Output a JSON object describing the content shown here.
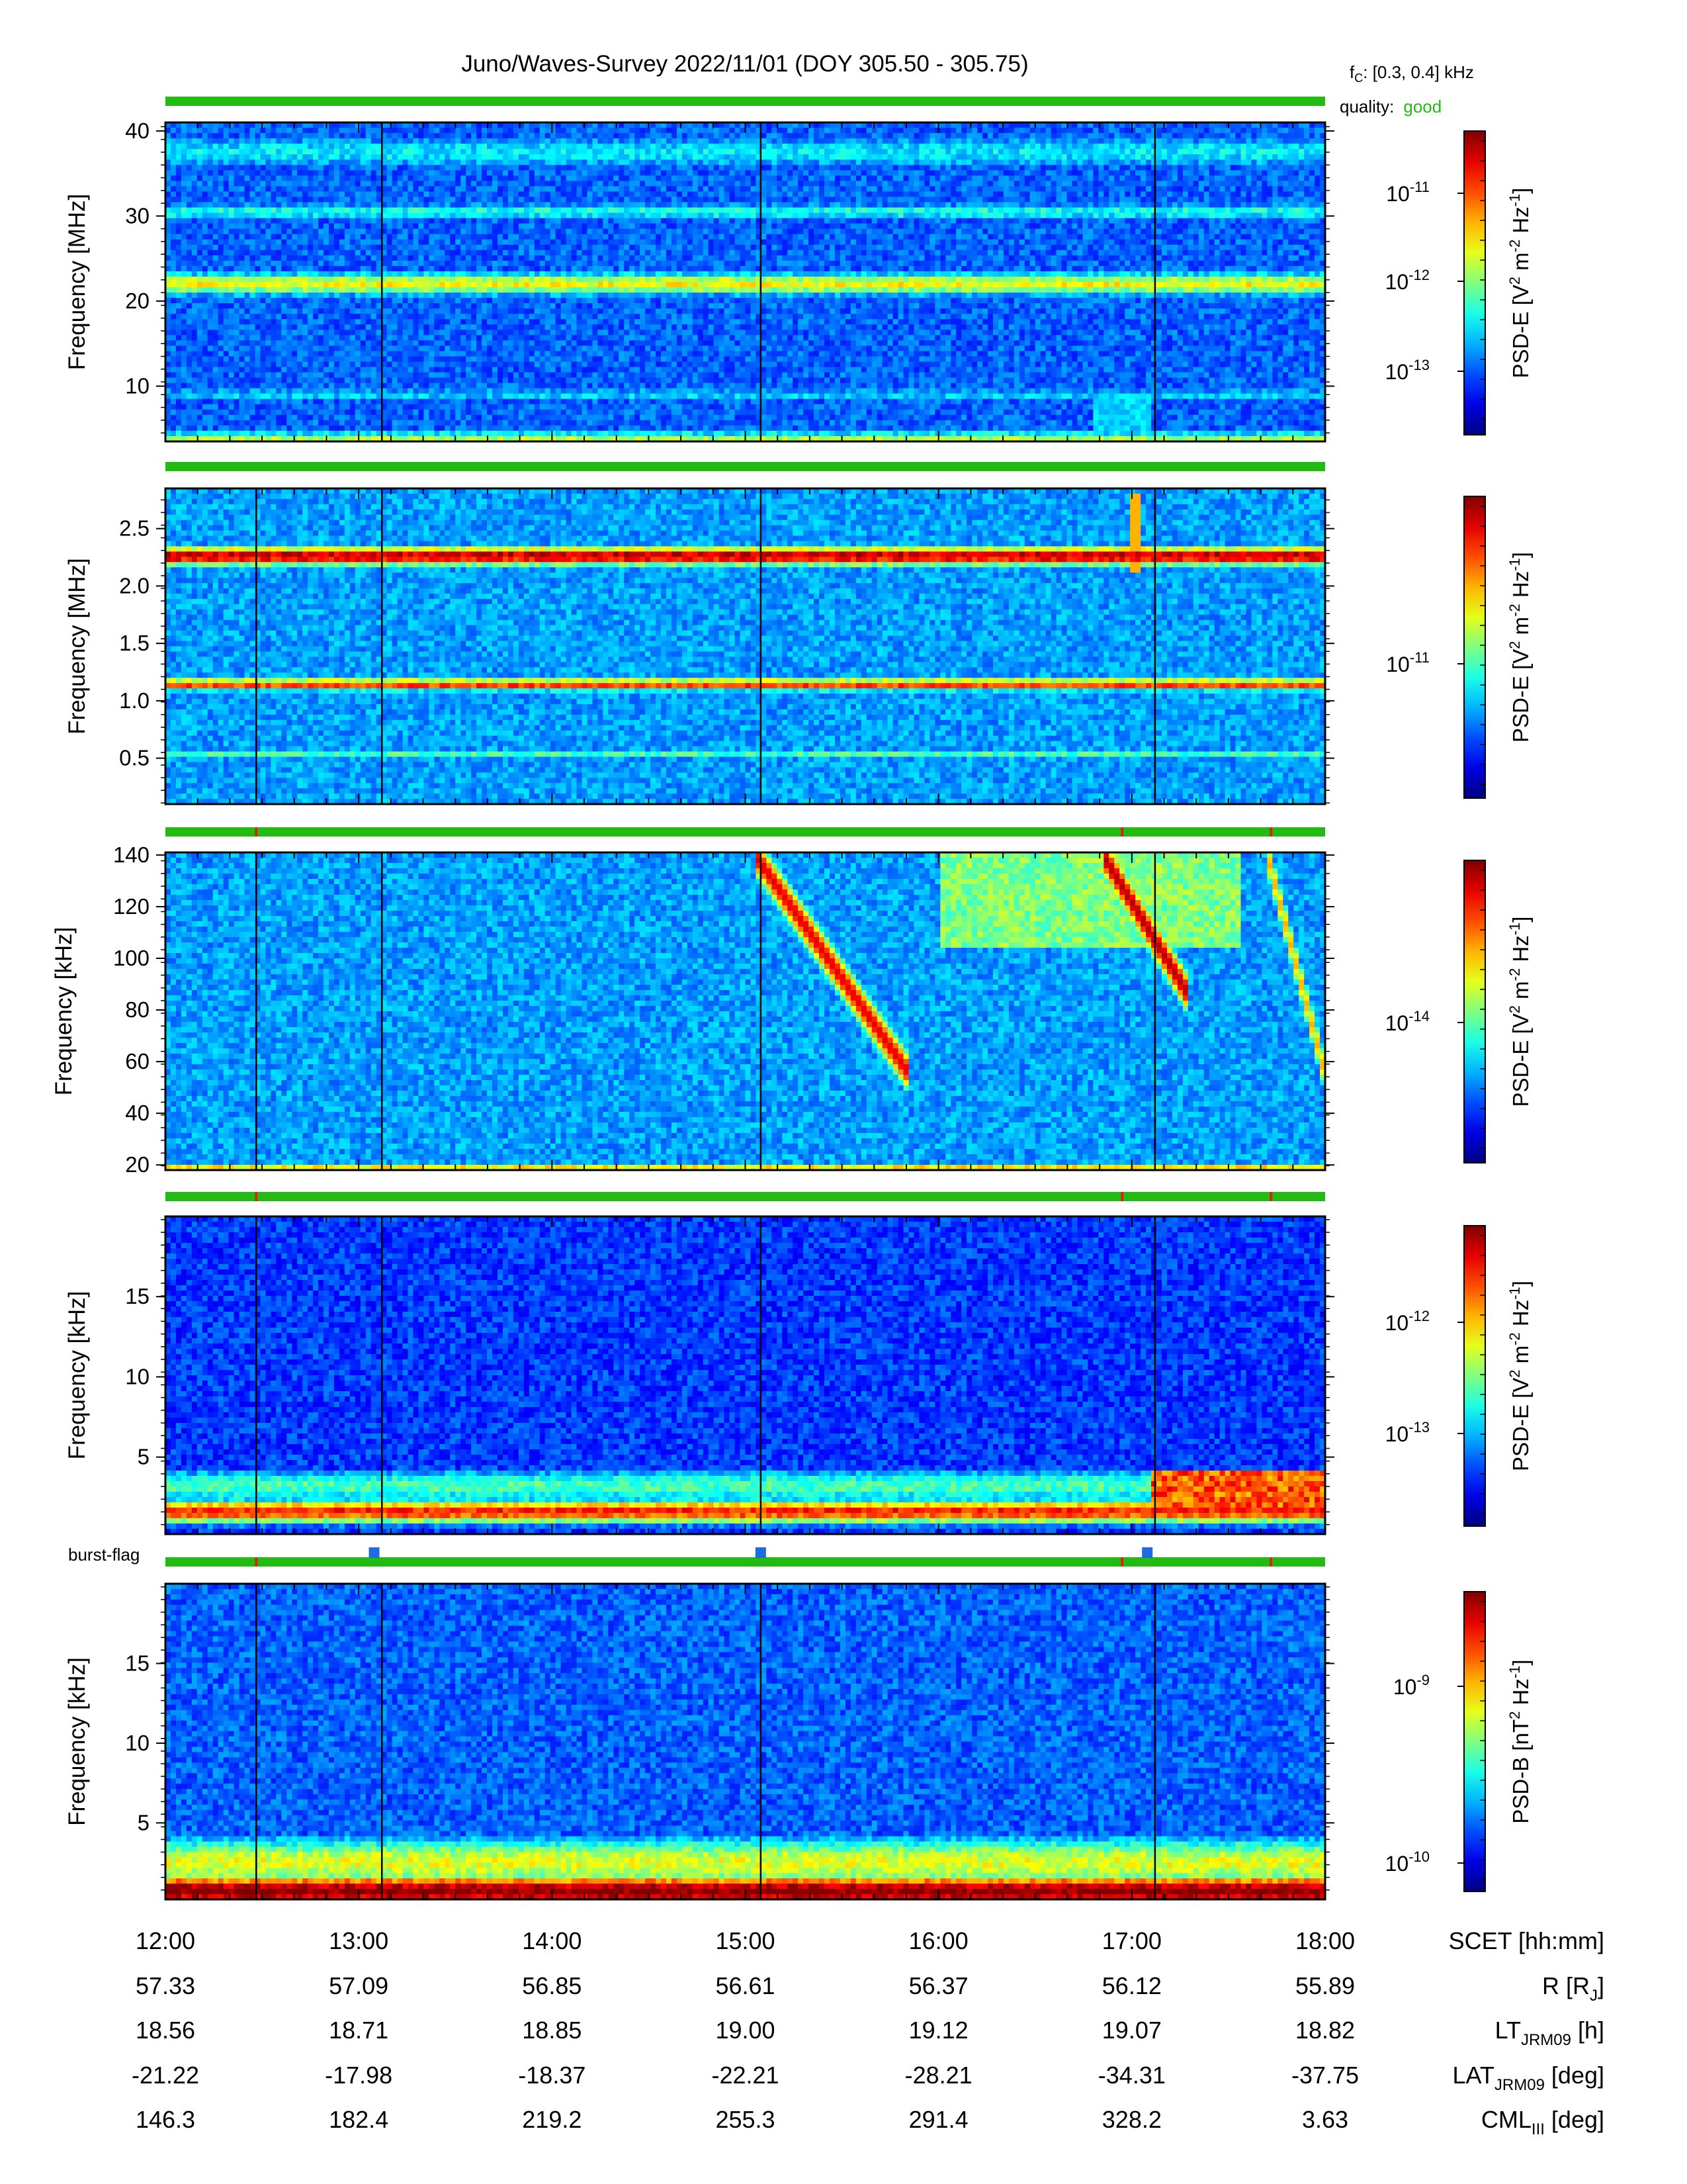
{
  "title": "Juno/Waves-Survey  2022/11/01 (DOY 305.50 - 305.75)",
  "header_info": {
    "fc_label": "f",
    "fc_sub": "C",
    "fc_value": ": [0.3, 0.4] kHz",
    "quality_label": "quality:",
    "quality_value": "good",
    "quality_color": "#22bb11"
  },
  "burst_flag_label": "burst-flag",
  "burst_flag_color": "#1f6be0",
  "burst_flag_times_hours": [
    13.08,
    15.08,
    17.08
  ],
  "colormap": "jet",
  "marker_lines_hours": [
    12.47,
    13.12,
    15.08,
    17.12
  ],
  "chart_data": [
    {
      "type": "heatmap",
      "panel": 1,
      "ylabel": "Frequency [MHz]",
      "yticks": [
        "10",
        "20",
        "30",
        "40"
      ],
      "ylim": [
        3.5,
        41
      ],
      "xlim_hours": [
        12,
        18
      ],
      "quality_bar_color": "#22bb11",
      "quality_flag_ticks_hours": [],
      "colorbar": {
        "label_main": "PSD-E [V",
        "label_unit": "V2 m-2 Hz-1",
        "ticks": [
          "10-11",
          "10-12",
          "10-13"
        ]
      },
      "bands": [
        {
          "center": 22.0,
          "width": 1.5,
          "intensity": 0.62
        },
        {
          "center": 30.5,
          "width": 1.2,
          "intensity": 0.4
        },
        {
          "center": 37.5,
          "width": 2.5,
          "intensity": 0.36
        },
        {
          "center": 9.0,
          "width": 0.9,
          "intensity": 0.34
        },
        {
          "center": 4.0,
          "width": 0.6,
          "intensity": 0.6
        }
      ],
      "background_intensity": 0.22,
      "features": [
        {
          "type": "blob",
          "t0": 16.8,
          "t1": 17.1,
          "f0": 4.5,
          "f1": 9,
          "intensity": 0.38
        }
      ]
    },
    {
      "type": "heatmap",
      "panel": 2,
      "ylabel": "Frequency [MHz]",
      "yticks": [
        "0.5",
        "1.0",
        "1.5",
        "2.0",
        "2.5"
      ],
      "ylim": [
        0.1,
        2.85
      ],
      "xlim_hours": [
        12,
        18
      ],
      "quality_bar_color": "#22bb11",
      "quality_flag_ticks_hours": [],
      "colorbar": {
        "label_main": "PSD-E [V",
        "label_unit": "V2 m-2 Hz-1",
        "ticks": [
          "10-11"
        ]
      },
      "bands": [
        {
          "center": 2.26,
          "width": 0.09,
          "intensity": 0.95
        },
        {
          "center": 1.14,
          "width": 0.06,
          "intensity": 0.82
        },
        {
          "center": 0.53,
          "width": 0.03,
          "intensity": 0.45
        }
      ],
      "background_intensity": 0.28,
      "features": [
        {
          "type": "line",
          "t0": 17.0,
          "t1": 17.02,
          "f0": 2.1,
          "f1": 2.8,
          "intensity": 0.7
        }
      ]
    },
    {
      "type": "heatmap",
      "panel": 3,
      "ylabel": "Frequency [kHz]",
      "yticks": [
        "20",
        "40",
        "60",
        "80",
        "100",
        "120",
        "140"
      ],
      "ylim": [
        18,
        141
      ],
      "xlim_hours": [
        12,
        18
      ],
      "quality_bar_color": "#22bb11",
      "quality_flag_ticks_hours": [
        12.47,
        16.95,
        17.72
      ],
      "colorbar": {
        "label_main": "PSD-E [V",
        "label_unit": "V2 m-2 Hz-1",
        "ticks": [
          "10-14"
        ]
      },
      "bands": [
        {
          "center": 19.5,
          "width": 1.5,
          "intensity": 0.7
        }
      ],
      "background_intensity": 0.28,
      "features": [
        {
          "type": "diag",
          "t0": 15.05,
          "f0": 140,
          "t1": 15.85,
          "f1": 55,
          "intensity": 0.9
        },
        {
          "type": "region",
          "t0": 16.0,
          "t1": 17.55,
          "f0": 105,
          "f1": 140,
          "intensity": 0.5
        },
        {
          "type": "diag",
          "t0": 16.85,
          "f0": 140,
          "t1": 17.3,
          "f1": 85,
          "intensity": 0.95
        },
        {
          "type": "diag",
          "t0": 17.7,
          "f0": 140,
          "t1": 18.0,
          "f1": 55,
          "intensity": 0.7
        }
      ]
    },
    {
      "type": "heatmap",
      "panel": 4,
      "ylabel": "Frequency [kHz]",
      "yticks": [
        "5",
        "10",
        "15"
      ],
      "ylim": [
        0.2,
        20
      ],
      "xlim_hours": [
        12,
        18
      ],
      "quality_bar_color": "#22bb11",
      "quality_flag_ticks_hours": [
        12.47,
        16.95,
        17.72
      ],
      "colorbar": {
        "label_main": "PSD-E [V",
        "label_unit": "V2 m-2 Hz-1",
        "ticks": [
          "10-12",
          "10-13"
        ]
      },
      "bands": [
        {
          "center": 1.6,
          "width": 0.8,
          "intensity": 0.85
        },
        {
          "center": 3.2,
          "width": 1.2,
          "intensity": 0.45
        }
      ],
      "background_intensity": 0.18,
      "features": [
        {
          "type": "blob",
          "t0": 17.1,
          "t1": 18.0,
          "f0": 1.5,
          "f1": 4.0,
          "intensity": 0.9
        }
      ]
    },
    {
      "type": "heatmap",
      "panel": 5,
      "ylabel": "Frequency [kHz]",
      "yticks": [
        "5",
        "10",
        "15"
      ],
      "ylim": [
        0.2,
        20
      ],
      "xlim_hours": [
        12,
        18
      ],
      "quality_bar_color": "#22bb11",
      "quality_flag_ticks_hours": [
        12.47,
        16.95,
        17.72
      ],
      "colorbar": {
        "label_main": "PSD-B [nT",
        "label_unit": "nT2 Hz-1",
        "ticks": [
          "10-9",
          "10-10"
        ]
      },
      "bands": [
        {
          "center": 0.7,
          "width": 1.2,
          "intensity": 1.0
        },
        {
          "center": 2.5,
          "width": 1.8,
          "intensity": 0.6
        }
      ],
      "background_intensity": 0.22,
      "features": []
    }
  ],
  "colorbars": [
    {
      "label": "PSD-E [V2 m-2 Hz-1]",
      "tick_labels": [
        {
          "base": "10",
          "exp": "-11"
        },
        {
          "base": "10",
          "exp": "-12"
        },
        {
          "base": "10",
          "exp": "-13"
        }
      ]
    },
    {
      "label": "PSD-E [V2 m-2 Hz-1]",
      "tick_labels": [
        {
          "base": "10",
          "exp": "-11"
        }
      ]
    },
    {
      "label": "PSD-E [V2 m-2 Hz-1]",
      "tick_labels": [
        {
          "base": "10",
          "exp": "-14"
        }
      ]
    },
    {
      "label": "PSD-E [V2 m-2 Hz-1]",
      "tick_labels": [
        {
          "base": "10",
          "exp": "-12"
        },
        {
          "base": "10",
          "exp": "-13"
        }
      ]
    },
    {
      "label": "PSD-B [nT2 Hz-1]",
      "tick_labels": [
        {
          "base": "10",
          "exp": "-9"
        },
        {
          "base": "10",
          "exp": "-10"
        }
      ]
    }
  ],
  "ephemeris": {
    "rows": [
      {
        "label": "SCET [hh:mm]",
        "values": [
          "12:00",
          "13:00",
          "14:00",
          "15:00",
          "16:00",
          "17:00",
          "18:00"
        ]
      },
      {
        "label": "R [RJ]",
        "values": [
          "57.33",
          "57.09",
          "56.85",
          "56.61",
          "56.37",
          "56.12",
          "55.89"
        ]
      },
      {
        "label": "LTJRM09 [h]",
        "values": [
          "18.56",
          "18.71",
          "18.85",
          "19.00",
          "19.12",
          "19.07",
          "18.82"
        ]
      },
      {
        "label": "LATJRM09 [deg]",
        "values": [
          "-21.22",
          "-17.98",
          "-18.37",
          "-22.21",
          "-28.21",
          "-34.31",
          "-37.75"
        ]
      },
      {
        "label": "CMLIII [deg]",
        "values": [
          "146.3",
          "182.4",
          "219.2",
          "255.3",
          "291.4",
          "328.2",
          "3.63"
        ]
      }
    ]
  }
}
